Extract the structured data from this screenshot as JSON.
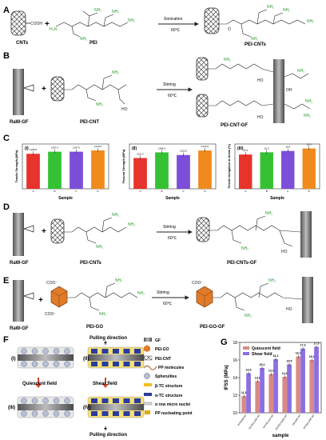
{
  "panels": {
    "A": {
      "letter": "A",
      "left": "CNTs",
      "cooh": "COOH",
      "mid": "PEI",
      "arrow_top": "Sonication",
      "arrow_bot": "60℃",
      "right": "PEI-CNTs"
    },
    "B": {
      "letter": "B",
      "left": "RaW-GF",
      "mid": "PEI-CNT",
      "arrow_top": "Stirring",
      "arrow_bot": "60℃",
      "right": "PEI-CNT-GF"
    },
    "C": {
      "letter": "C"
    },
    "D": {
      "letter": "D",
      "left": "RaW-GF",
      "mid": "PEI-CNTs",
      "arrow_top": "Stirring",
      "arrow_bot": "60℃",
      "right": "PEI-CNTs-GF"
    },
    "E": {
      "letter": "E",
      "left": "RaW-GF",
      "mid": "PEI-GO",
      "arrow_top": "Stirring",
      "arrow_bot": "60℃",
      "right": "PEI-GO-GF",
      "coo": "COO⁻"
    },
    "F": {
      "letter": "F",
      "top_label": "Pulling direction",
      "bottom_label": "Pulling direction",
      "quiescent": "Quiescent field",
      "shear": "Shear field",
      "roman": [
        "(I)",
        "(II)",
        "(III)",
        "(IV)"
      ],
      "legend": [
        "GF",
        "PEI-GO",
        "PEI-CNT",
        "PP molecules",
        "Spherulites",
        "β-TC structure",
        "α-TC structure",
        "α row micro nuclei",
        "PP nucleating point"
      ]
    },
    "G": {
      "letter": "G"
    }
  },
  "chem": {
    "nh2": "NH₂",
    "nh": "N",
    "h": "H",
    "h2n": "H₂N",
    "ho": "HO",
    "oh": "OH",
    "o": "O"
  },
  "chart_data": [
    {
      "type": "bar",
      "panel": "C-I",
      "roman": "(I)",
      "categories": [
        "A",
        "B",
        "C",
        "D"
      ],
      "values": [
        1168.8,
        1197.0,
        1197.0,
        1213.5
      ],
      "value_labels": [
        "1168.8",
        "1197.0",
        "1197.0",
        "1213.5"
      ],
      "ylabel": "Tensile Strength (MPa)",
      "xlabel": "Sample",
      "colors": [
        "#e8322c",
        "#34c234",
        "#7b4fd8",
        "#f08a1c"
      ]
    },
    {
      "type": "bar",
      "panel": "C-II",
      "roman": "(II)",
      "categories": [
        "A",
        "B",
        "C",
        "D"
      ],
      "values": [
        1112.2,
        1188.0,
        1152.8,
        1213.0
      ],
      "value_labels": [
        "1112.2",
        "1188.0",
        "1152.8",
        "1213.0"
      ],
      "ylabel": "Flexural Strength (MPa)",
      "xlabel": "Sample",
      "colors": [
        "#e8322c",
        "#34c234",
        "#7b4fd8",
        "#f08a1c"
      ]
    },
    {
      "type": "bar",
      "panel": "C-III",
      "roman": "(III)",
      "categories": [
        "A",
        "B",
        "C",
        "D"
      ],
      "values": [
        15.3,
        16.3,
        16.9,
        18.0
      ],
      "value_labels": [
        "15.3",
        "16.3",
        "16.9",
        "18.0"
      ],
      "ylabel": "Tensile elongation at break (%)",
      "xlabel": "Sample",
      "ylim": [
        0,
        20
      ],
      "colors": [
        "#e8322c",
        "#34c234",
        "#7b4fd8",
        "#f08a1c"
      ]
    },
    {
      "type": "bar",
      "panel": "G",
      "categories": [
        "PP/RaW-GF",
        "PP/PEI-CNT-GF",
        "PP/PEI-GO-GF",
        "PP/PEI-CNTs-GF",
        "PP/CNT-GF",
        "PP/GO-CNT-GF"
      ],
      "series": [
        {
          "name": "Quiescent field",
          "values": [
            11.9,
            13.6,
            14.4,
            14.1,
            16.4,
            16.0
          ],
          "color": "#d98a86"
        },
        {
          "name": "Shear field",
          "values": [
            14.5,
            15.1,
            16.1,
            15.5,
            17.3,
            17.5
          ],
          "color": "#8b6fe0"
        }
      ],
      "value_labels": [
        [
          "11.9",
          "13.6",
          "14.4",
          "14.1",
          "16.4",
          "16.0"
        ],
        [
          "14.5",
          "15.1",
          "16.1",
          "15.5",
          "17.3",
          "17.5"
        ]
      ],
      "ylabel": "IFSS (MPa)",
      "xlabel": "sample",
      "ylim": [
        10,
        18
      ],
      "yticks": [
        10,
        12,
        14,
        16,
        18
      ],
      "legend_position": "top-left"
    }
  ]
}
